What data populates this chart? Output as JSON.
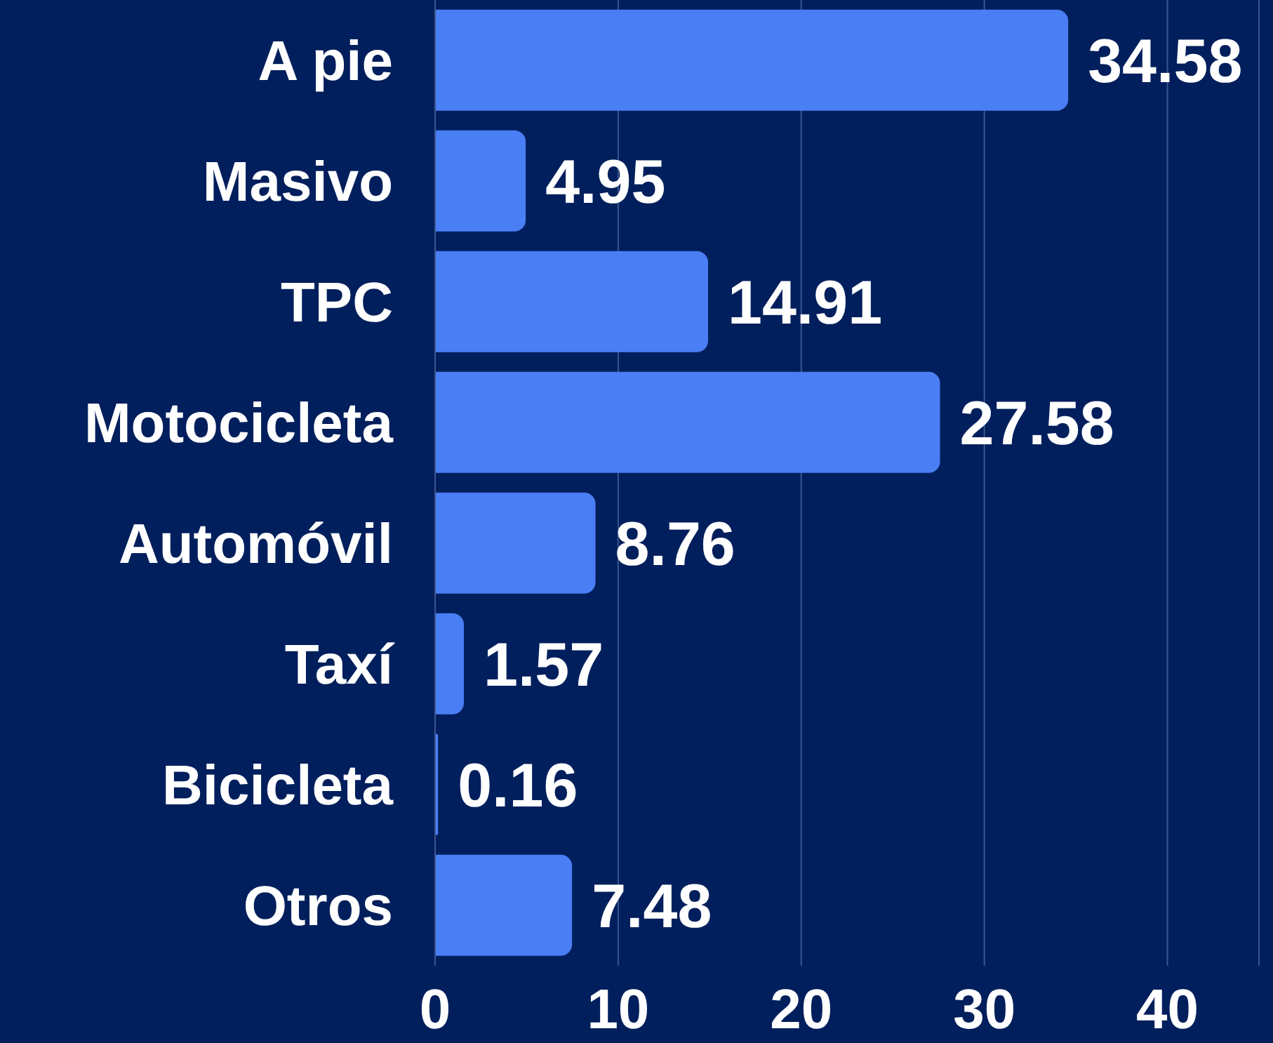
{
  "chart_data": {
    "type": "bar",
    "orientation": "horizontal",
    "categories": [
      "A pie",
      "Masivo",
      "TPC",
      "Motocicleta",
      "Automóvil",
      "Taxí",
      "Bicicleta",
      "Otros"
    ],
    "values": [
      34.58,
      4.95,
      14.91,
      27.58,
      8.76,
      1.57,
      0.16,
      7.48
    ],
    "color": "#4a7ef5",
    "xlim": [
      0,
      45
    ],
    "xticks": [
      0,
      10,
      20,
      30,
      40
    ],
    "grid": "x",
    "data_labels": true
  }
}
